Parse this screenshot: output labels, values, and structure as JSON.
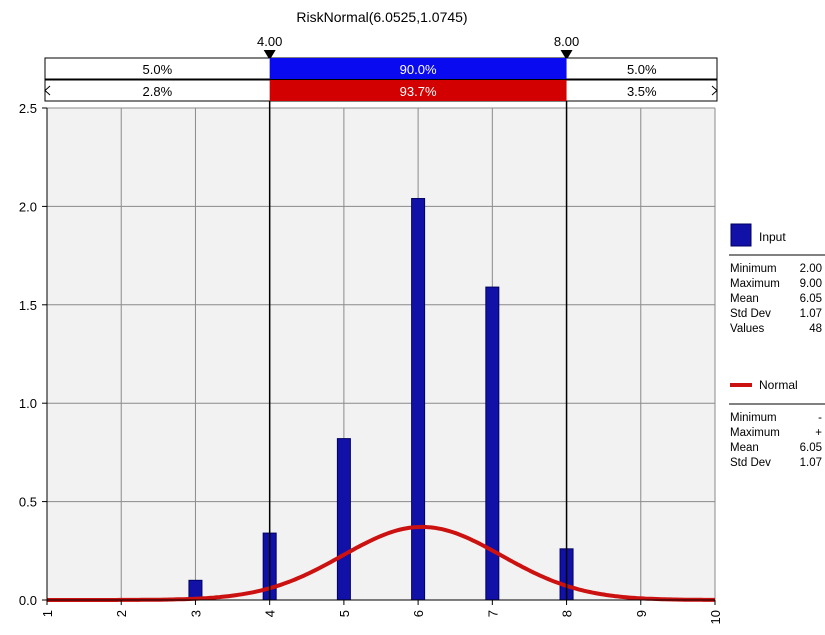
{
  "colors": {
    "input_bar": "#1111a8",
    "input_bar_edge": "#000060",
    "normal_curve": "#cc1111",
    "delimiter_blue": "#0a0af0",
    "delimiter_red": "#d20000",
    "plot_bg": "#f2f2f2",
    "grid": "#8a8a8a"
  },
  "chart_data": {
    "type": "bar",
    "title": "RiskNormal(6.0525,1.0745)",
    "xlabel": "",
    "ylabel": "",
    "xlim": [
      1,
      10
    ],
    "ylim": [
      0,
      2.5
    ],
    "x_ticks": [
      "1",
      "2",
      "3",
      "4",
      "5",
      "6",
      "7",
      "8",
      "9",
      "10"
    ],
    "y_ticks": [
      "0.0",
      "0.5",
      "1.0",
      "1.5",
      "2.0",
      "2.5"
    ],
    "grid": true,
    "delimiters": {
      "left_value": "4.00",
      "right_value": "8.00",
      "left": 4,
      "right": 8,
      "input_row": [
        "5.0%",
        "90.0%",
        "5.0%"
      ],
      "normal_row": [
        "2.8%",
        "93.7%",
        "3.5%"
      ]
    },
    "series": [
      {
        "name": "Input",
        "kind": "histogram",
        "x": [
          3,
          4,
          5,
          6,
          7,
          8
        ],
        "values": [
          0.1,
          0.34,
          0.82,
          2.04,
          1.59,
          0.26
        ]
      },
      {
        "name": "Normal",
        "kind": "line",
        "mean": 6.0525,
        "std_dev": 1.0745
      }
    ]
  },
  "legend": {
    "input": {
      "label": "Input",
      "stats": [
        {
          "name": "Minimum",
          "value": "2.00"
        },
        {
          "name": "Maximum",
          "value": "9.00"
        },
        {
          "name": "Mean",
          "value": "6.05"
        },
        {
          "name": "Std Dev",
          "value": "1.07"
        },
        {
          "name": "Values",
          "value": "48"
        }
      ]
    },
    "normal": {
      "label": "Normal",
      "stats": [
        {
          "name": "Minimum",
          "value": "-"
        },
        {
          "name": "Maximum",
          "value": "+"
        },
        {
          "name": "Mean",
          "value": "6.05"
        },
        {
          "name": "Std Dev",
          "value": "1.07"
        }
      ]
    }
  }
}
